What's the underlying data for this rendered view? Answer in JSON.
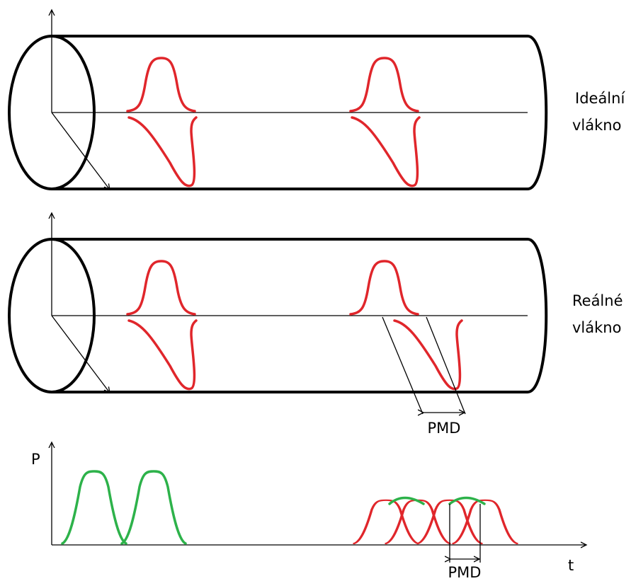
{
  "cylinders": [
    {
      "label_lines": [
        "Ideální",
        "vlákno"
      ]
    },
    {
      "label_lines": [
        "Reálné",
        "vlákno"
      ]
    }
  ],
  "pmd_label": "PMD",
  "graph": {
    "y_label": "P",
    "x_label": "t",
    "pmd_label": "PMD"
  }
}
